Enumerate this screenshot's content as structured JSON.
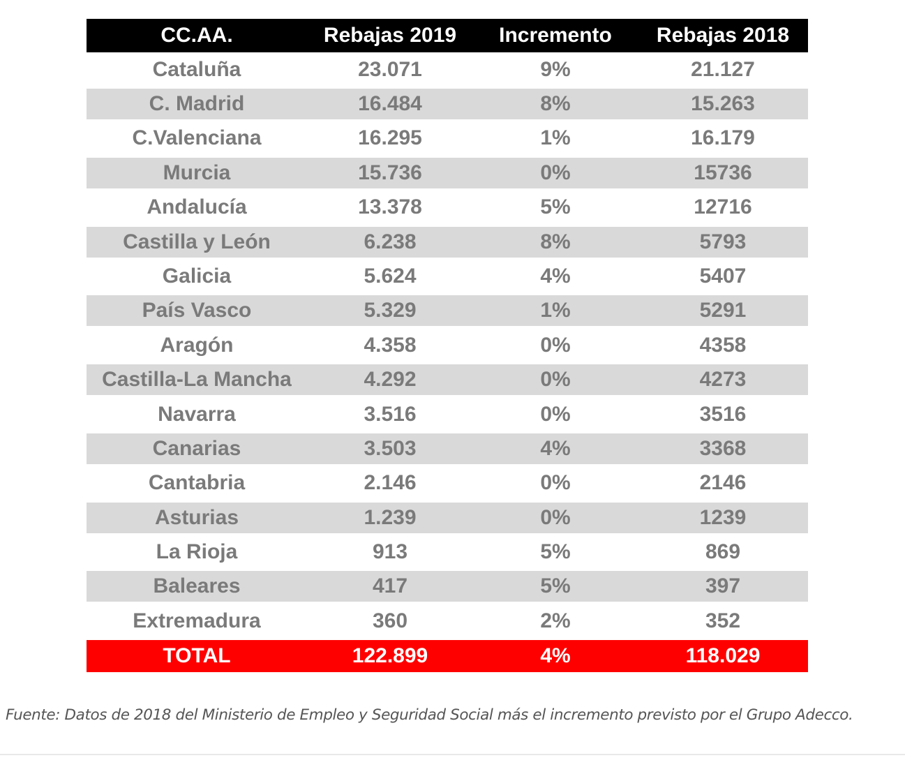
{
  "table": {
    "headers": [
      "CC.AA.",
      "Rebajas 2019",
      "Incremento",
      "Rebajas 2018"
    ],
    "rows": [
      [
        "Cataluña",
        "23.071",
        "9%",
        "21.127"
      ],
      [
        "C. Madrid",
        "16.484",
        "8%",
        "15.263"
      ],
      [
        "C.Valenciana",
        "16.295",
        "1%",
        "16.179"
      ],
      [
        "Murcia",
        "15.736",
        "0%",
        "15736"
      ],
      [
        "Andalucía",
        "13.378",
        "5%",
        "12716"
      ],
      [
        "Castilla y León",
        "6.238",
        "8%",
        "5793"
      ],
      [
        "Galicia",
        "5.624",
        "4%",
        "5407"
      ],
      [
        "País Vasco",
        "5.329",
        "1%",
        "5291"
      ],
      [
        "Aragón",
        "4.358",
        "0%",
        "4358"
      ],
      [
        "Castilla-La Mancha",
        "4.292",
        "0%",
        "4273"
      ],
      [
        "Navarra",
        "3.516",
        "0%",
        "3516"
      ],
      [
        "Canarias",
        "3.503",
        "4%",
        "3368"
      ],
      [
        "Cantabria",
        "2.146",
        "0%",
        "2146"
      ],
      [
        "Asturias",
        "1.239",
        "0%",
        "1239"
      ],
      [
        "La Rioja",
        "913",
        "5%",
        "869"
      ],
      [
        "Baleares",
        "417",
        "5%",
        "397"
      ],
      [
        "Extremadura",
        "360",
        "2%",
        "352"
      ]
    ],
    "total": [
      "TOTAL",
      "122.899",
      "4%",
      "118.029"
    ]
  },
  "source": "Fuente: Datos de 2018 del Ministerio de Empleo y Seguridad Social más el incremento previsto por el Grupo Adecco.",
  "colors": {
    "header_bg": "#000000",
    "stripe_bg": "#d9d9d9",
    "total_bg": "#ff0000",
    "text": "#7a7a7a"
  }
}
